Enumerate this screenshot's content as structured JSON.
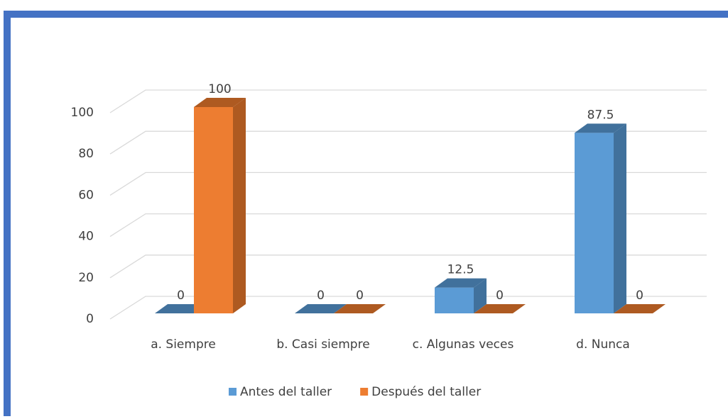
{
  "chart_data": {
    "type": "bar3d",
    "categories": [
      "a. Siempre",
      "b. Casi siempre",
      "c. Algunas veces",
      "d. Nunca"
    ],
    "series": [
      {
        "name": "Antes del taller",
        "color": "#5b9bd5",
        "side": "#41719c",
        "values": [
          0,
          0,
          12.5,
          87.5
        ]
      },
      {
        "name": "Después del taller",
        "color": "#ed7d31",
        "side": "#ae5a21",
        "values": [
          100,
          0,
          0,
          0
        ]
      }
    ],
    "ylim": [
      0,
      100
    ],
    "yticks": [
      0,
      20,
      40,
      60,
      80,
      100
    ],
    "grid": true,
    "legend": "bottom"
  }
}
